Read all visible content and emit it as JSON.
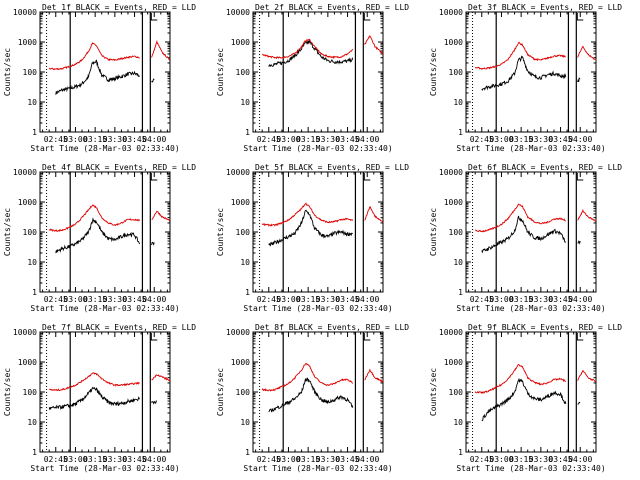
{
  "colors": {
    "events": "#000000",
    "lld": "#dd0000",
    "axis": "#000000"
  },
  "chart_data": [
    {
      "type": "line",
      "title": "Det 1f BLACK = Events, RED = LLD",
      "xlabel": "Start Time (28-Mar-03 02:33:40)",
      "ylabel": "Counts/sec",
      "scale": "log",
      "ylim": [
        1,
        10000
      ],
      "y_ticks": [
        "1",
        "10",
        "100",
        "1000",
        "10000"
      ],
      "x_ticks": [
        "02:45",
        "03:00",
        "03:15",
        "03:30",
        "03:45",
        "04:00"
      ],
      "series": [
        {
          "name": "Events",
          "x": [
            "02:45",
            "02:50",
            "02:55",
            "03:00",
            "03:05",
            "03:10",
            "03:13",
            "03:16",
            "03:20",
            "03:25",
            "03:30",
            "03:35",
            "03:40",
            "03:45",
            "03:49",
            "03:58",
            "04:00"
          ],
          "values": [
            20,
            25,
            28,
            32,
            40,
            70,
            200,
            220,
            80,
            55,
            60,
            70,
            85,
            90,
            75,
            40,
            55
          ]
        },
        {
          "name": "LLD",
          "x": [
            "02:33",
            "02:40",
            "02:45",
            "02:50",
            "02:55",
            "03:00",
            "03:05",
            "03:10",
            "03:13",
            "03:16",
            "03:20",
            "03:25",
            "03:30",
            "03:35",
            "03:40",
            "03:45",
            "03:49",
            "03:58",
            "04:02",
            "04:06",
            "04:12"
          ],
          "values": [
            150,
            130,
            125,
            130,
            150,
            180,
            250,
            500,
            900,
            750,
            350,
            260,
            250,
            280,
            310,
            330,
            300,
            300,
            1000,
            450,
            250
          ]
        }
      ]
    },
    {
      "type": "line",
      "title": "Det 2f BLACK = Events, RED = LLD",
      "xlabel": "Start Time (28-Mar-03 02:33:40)",
      "ylabel": "Counts/sec",
      "scale": "log",
      "ylim": [
        1,
        10000
      ],
      "y_ticks": [
        "1",
        "10",
        "100",
        "1000",
        "10000"
      ],
      "x_ticks": [
        "02:45",
        "03:00",
        "03:15",
        "03:30",
        "03:45",
        "04:00"
      ],
      "series": [
        {
          "name": "Events",
          "x": [
            "02:45",
            "02:50",
            "02:55",
            "03:00",
            "03:05",
            "03:10",
            "03:13",
            "03:16",
            "03:20",
            "03:25",
            "03:30",
            "03:35",
            "03:40",
            "03:45",
            "03:49"
          ],
          "values": [
            170,
            180,
            200,
            240,
            350,
            600,
            900,
            1000,
            600,
            320,
            240,
            220,
            220,
            230,
            260
          ]
        },
        {
          "name": "LLD",
          "x": [
            "02:33",
            "02:40",
            "02:45",
            "02:50",
            "02:55",
            "03:00",
            "03:05",
            "03:10",
            "03:13",
            "03:16",
            "03:20",
            "03:25",
            "03:30",
            "03:35",
            "03:40",
            "03:45",
            "03:49",
            "03:58",
            "04:02",
            "04:06",
            "04:12"
          ],
          "values": [
            420,
            380,
            330,
            300,
            300,
            330,
            420,
            700,
            1100,
            1200,
            700,
            400,
            330,
            310,
            320,
            400,
            550,
            800,
            1600,
            700,
            400
          ]
        }
      ]
    },
    {
      "type": "line",
      "title": "Det 3f BLACK = Events, RED = LLD",
      "xlabel": "Start Time (28-Mar-03 02:33:40)",
      "ylabel": "Counts/sec",
      "scale": "log",
      "ylim": [
        1,
        10000
      ],
      "y_ticks": [
        "1",
        "10",
        "100",
        "1000",
        "10000"
      ],
      "x_ticks": [
        "02:45",
        "03:00",
        "03:15",
        "03:30",
        "03:45",
        "04:00"
      ],
      "series": [
        {
          "name": "Events",
          "x": [
            "02:45",
            "02:50",
            "02:55",
            "03:00",
            "03:05",
            "03:10",
            "03:13",
            "03:16",
            "03:20",
            "03:25",
            "03:30",
            "03:35",
            "03:40",
            "03:45",
            "03:49",
            "03:58",
            "04:00"
          ],
          "values": [
            28,
            32,
            35,
            40,
            50,
            90,
            250,
            300,
            110,
            70,
            65,
            80,
            90,
            75,
            70,
            50,
            60
          ]
        },
        {
          "name": "LLD",
          "x": [
            "02:33",
            "02:40",
            "02:45",
            "02:50",
            "02:55",
            "03:00",
            "03:05",
            "03:10",
            "03:13",
            "03:16",
            "03:20",
            "03:25",
            "03:30",
            "03:35",
            "03:40",
            "03:45",
            "03:49",
            "03:58",
            "04:02",
            "04:06",
            "04:12"
          ],
          "values": [
            150,
            140,
            130,
            135,
            150,
            180,
            260,
            550,
            950,
            800,
            380,
            270,
            250,
            290,
            340,
            350,
            320,
            320,
            700,
            380,
            250
          ]
        }
      ]
    },
    {
      "type": "line",
      "title": "Det 4f BLACK = Events, RED = LLD",
      "xlabel": "Start Time (28-Mar-03 02:33:40)",
      "ylabel": "Counts/sec",
      "scale": "log",
      "ylim": [
        1,
        10000
      ],
      "y_ticks": [
        "1",
        "10",
        "100",
        "1000",
        "10000"
      ],
      "x_ticks": [
        "02:45",
        "03:00",
        "03:15",
        "03:30",
        "03:45",
        "04:00"
      ],
      "series": [
        {
          "name": "Events",
          "x": [
            "02:45",
            "02:50",
            "02:55",
            "03:00",
            "03:05",
            "03:10",
            "03:13",
            "03:16",
            "03:20",
            "03:25",
            "03:30",
            "03:35",
            "03:40",
            "03:45",
            "03:49",
            "03:58",
            "04:00"
          ],
          "values": [
            22,
            28,
            32,
            40,
            55,
            100,
            250,
            220,
            100,
            60,
            55,
            70,
            85,
            80,
            40,
            40,
            45
          ]
        },
        {
          "name": "LLD",
          "x": [
            "02:33",
            "02:40",
            "02:45",
            "02:50",
            "02:55",
            "03:00",
            "03:05",
            "03:10",
            "03:13",
            "03:16",
            "03:20",
            "03:25",
            "03:30",
            "03:35",
            "03:40",
            "03:45",
            "03:49",
            "03:58",
            "04:02",
            "04:06",
            "04:12"
          ],
          "values": [
            140,
            120,
            110,
            115,
            140,
            180,
            300,
            550,
            800,
            650,
            300,
            200,
            170,
            200,
            260,
            260,
            240,
            250,
            500,
            320,
            240
          ]
        }
      ]
    },
    {
      "type": "line",
      "title": "Det 5f BLACK = Events, RED = LLD",
      "xlabel": "Start Time (28-Mar-03 02:33:40)",
      "ylabel": "Counts/sec",
      "scale": "log",
      "ylim": [
        1,
        10000
      ],
      "y_ticks": [
        "1",
        "10",
        "100",
        "1000",
        "10000"
      ],
      "x_ticks": [
        "02:45",
        "03:00",
        "03:15",
        "03:30",
        "03:45",
        "04:00"
      ],
      "series": [
        {
          "name": "Events",
          "x": [
            "02:45",
            "02:50",
            "02:55",
            "03:00",
            "03:05",
            "03:10",
            "03:13",
            "03:16",
            "03:20",
            "03:25",
            "03:30",
            "03:35",
            "03:40",
            "03:45",
            "03:49"
          ],
          "values": [
            35,
            45,
            55,
            70,
            90,
            200,
            500,
            400,
            130,
            80,
            70,
            90,
            100,
            85,
            90
          ]
        },
        {
          "name": "LLD",
          "x": [
            "02:33",
            "02:40",
            "02:45",
            "02:50",
            "02:55",
            "03:00",
            "03:05",
            "03:10",
            "03:13",
            "03:16",
            "03:20",
            "03:25",
            "03:30",
            "03:35",
            "03:40",
            "03:45",
            "03:49",
            "03:58",
            "04:02",
            "04:06",
            "04:12"
          ],
          "values": [
            200,
            180,
            170,
            170,
            200,
            250,
            380,
            600,
            900,
            700,
            360,
            250,
            210,
            220,
            260,
            270,
            240,
            240,
            700,
            330,
            220
          ]
        }
      ]
    },
    {
      "type": "line",
      "title": "Det 6f BLACK = Events, RED = LLD",
      "xlabel": "Start Time (28-Mar-03 02:33:40)",
      "ylabel": "Counts/sec",
      "scale": "log",
      "ylim": [
        1,
        10000
      ],
      "y_ticks": [
        "1",
        "10",
        "100",
        "1000",
        "10000"
      ],
      "x_ticks": [
        "02:45",
        "03:00",
        "03:15",
        "03:30",
        "03:45",
        "04:00"
      ],
      "series": [
        {
          "name": "Events",
          "x": [
            "02:45",
            "02:50",
            "02:55",
            "03:00",
            "03:05",
            "03:10",
            "03:13",
            "03:16",
            "03:20",
            "03:25",
            "03:30",
            "03:35",
            "03:40",
            "03:45",
            "03:49",
            "03:58",
            "04:00"
          ],
          "values": [
            22,
            28,
            35,
            45,
            60,
            110,
            300,
            250,
            100,
            65,
            60,
            80,
            110,
            90,
            45,
            40,
            50
          ]
        },
        {
          "name": "LLD",
          "x": [
            "02:33",
            "02:40",
            "02:45",
            "02:50",
            "02:55",
            "03:00",
            "03:05",
            "03:10",
            "03:13",
            "03:16",
            "03:20",
            "03:25",
            "03:30",
            "03:35",
            "03:40",
            "03:45",
            "03:49",
            "03:58",
            "04:02",
            "04:06",
            "04:12"
          ],
          "values": [
            120,
            110,
            105,
            115,
            140,
            180,
            280,
            550,
            850,
            700,
            320,
            220,
            190,
            210,
            270,
            280,
            240,
            250,
            500,
            320,
            230
          ]
        }
      ]
    },
    {
      "type": "line",
      "title": "Det 7f BLACK = Events, RED = LLD",
      "xlabel": "Start Time (28-Mar-03 02:33:40)",
      "ylabel": "Counts/sec",
      "scale": "log",
      "ylim": [
        1,
        10000
      ],
      "y_ticks": [
        "1",
        "10",
        "100",
        "1000",
        "10000"
      ],
      "x_ticks": [
        "02:45",
        "03:00",
        "03:15",
        "03:30",
        "03:45",
        "04:00"
      ],
      "series": [
        {
          "name": "Events",
          "x": [
            "02:33",
            "02:40",
            "02:45",
            "02:50",
            "02:55",
            "03:00",
            "03:05",
            "03:10",
            "03:13",
            "03:16",
            "03:20",
            "03:25",
            "03:30",
            "03:35",
            "03:40",
            "03:45",
            "03:49",
            "03:58",
            "04:02"
          ],
          "values": [
            25,
            28,
            30,
            32,
            35,
            40,
            55,
            90,
            130,
            120,
            70,
            45,
            40,
            42,
            48,
            55,
            60,
            45,
            50
          ]
        },
        {
          "name": "LLD",
          "x": [
            "02:33",
            "02:40",
            "02:45",
            "02:50",
            "02:55",
            "03:00",
            "03:05",
            "03:10",
            "03:13",
            "03:16",
            "03:20",
            "03:25",
            "03:30",
            "03:35",
            "03:40",
            "03:45",
            "03:49",
            "03:58",
            "04:02",
            "04:06",
            "04:12"
          ],
          "values": [
            130,
            120,
            115,
            120,
            140,
            170,
            230,
            330,
            420,
            400,
            280,
            200,
            170,
            170,
            180,
            190,
            200,
            250,
            380,
            320,
            240
          ]
        }
      ]
    },
    {
      "type": "line",
      "title": "Det 8f BLACK = Events, RED = LLD",
      "xlabel": "Start Time (28-Mar-03 02:33:40)",
      "ylabel": "Counts/sec",
      "scale": "log",
      "ylim": [
        1,
        10000
      ],
      "y_ticks": [
        "1",
        "10",
        "100",
        "1000",
        "10000"
      ],
      "x_ticks": [
        "02:45",
        "03:00",
        "03:15",
        "03:30",
        "03:45",
        "04:00"
      ],
      "series": [
        {
          "name": "Events",
          "x": [
            "02:45",
            "02:50",
            "02:55",
            "03:00",
            "03:05",
            "03:10",
            "03:13",
            "03:16",
            "03:20",
            "03:25",
            "03:30",
            "03:35",
            "03:40",
            "03:45",
            "03:49"
          ],
          "values": [
            22,
            28,
            35,
            45,
            60,
            100,
            260,
            250,
            100,
            55,
            45,
            55,
            70,
            55,
            30
          ]
        },
        {
          "name": "LLD",
          "x": [
            "02:33",
            "02:40",
            "02:45",
            "02:50",
            "02:55",
            "03:00",
            "03:05",
            "03:10",
            "03:13",
            "03:16",
            "03:20",
            "03:25",
            "03:30",
            "03:35",
            "03:40",
            "03:45",
            "03:49",
            "03:58",
            "04:02",
            "04:06",
            "04:12"
          ],
          "values": [
            130,
            120,
            115,
            120,
            150,
            190,
            300,
            550,
            900,
            750,
            320,
            200,
            170,
            190,
            250,
            260,
            200,
            250,
            550,
            300,
            220
          ]
        }
      ]
    },
    {
      "type": "line",
      "title": "Det 9f BLACK = Events, RED = LLD",
      "xlabel": "Start Time (28-Mar-03 02:33:40)",
      "ylabel": "Counts/sec",
      "scale": "log",
      "ylim": [
        1,
        10000
      ],
      "y_ticks": [
        "1",
        "10",
        "100",
        "1000",
        "10000"
      ],
      "x_ticks": [
        "02:45",
        "03:00",
        "03:15",
        "03:30",
        "03:45",
        "04:00"
      ],
      "series": [
        {
          "name": "Events",
          "x": [
            "02:45",
            "02:50",
            "02:55",
            "03:00",
            "03:05",
            "03:10",
            "03:13",
            "03:16",
            "03:20",
            "03:25",
            "03:30",
            "03:35",
            "03:40",
            "03:45",
            "03:49",
            "03:58",
            "04:00"
          ],
          "values": [
            12,
            22,
            30,
            40,
            55,
            100,
            250,
            220,
            90,
            60,
            55,
            70,
            95,
            85,
            40,
            35,
            45
          ]
        },
        {
          "name": "LLD",
          "x": [
            "02:33",
            "02:40",
            "02:45",
            "02:50",
            "02:55",
            "03:00",
            "03:05",
            "03:10",
            "03:13",
            "03:16",
            "03:20",
            "03:25",
            "03:30",
            "03:35",
            "03:40",
            "03:45",
            "03:49",
            "03:58",
            "04:02",
            "04:06",
            "04:12"
          ],
          "values": [
            110,
            100,
            95,
            105,
            135,
            175,
            270,
            520,
            820,
            680,
            300,
            210,
            180,
            200,
            260,
            270,
            230,
            240,
            520,
            300,
            220
          ]
        }
      ]
    }
  ]
}
